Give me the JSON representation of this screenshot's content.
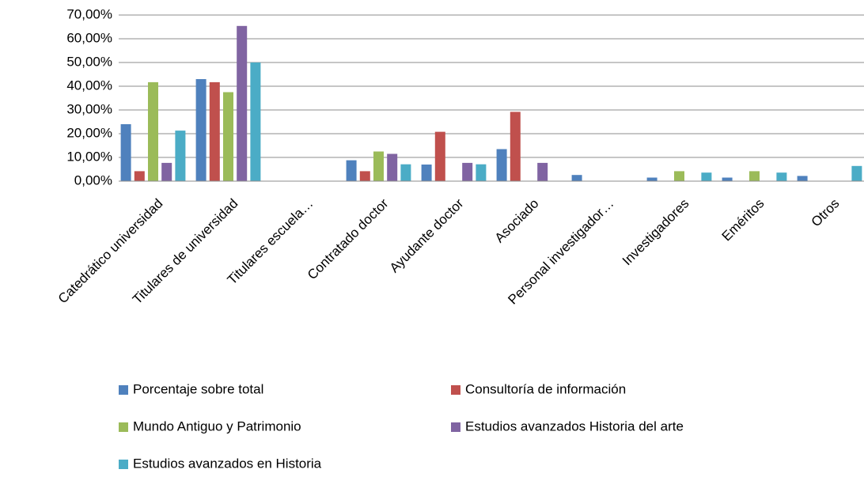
{
  "chart_data": {
    "type": "bar",
    "categories": [
      "Catedrático universidad",
      "Titulares de universidad",
      "Titulares escuela…",
      "Contratado doctor",
      "Ayudante doctor",
      "Asociado",
      "Personal investigador…",
      "Investigadores",
      "Eméritos",
      "Otros"
    ],
    "series": [
      {
        "name": "Porcentaje sobre total",
        "color": "#4f81bd",
        "values": [
          24,
          43,
          0,
          8.8,
          7,
          13.5,
          2.6,
          1.5,
          1.5,
          2.2
        ]
      },
      {
        "name": "Consultoría de información",
        "color": "#c0504d",
        "values": [
          4.2,
          41.7,
          0,
          4.2,
          20.8,
          29.2,
          0,
          0,
          0,
          0
        ]
      },
      {
        "name": "Mundo Antiguo y Patrimonio",
        "color": "#9bbb59",
        "values": [
          41.7,
          37.5,
          0,
          12.5,
          0,
          0,
          0,
          4.2,
          4.2,
          0
        ]
      },
      {
        "name": "Estudios avanzados Historia del arte",
        "color": "#8064a2",
        "values": [
          7.7,
          65.4,
          0,
          11.5,
          7.7,
          7.7,
          0,
          0,
          0,
          0
        ]
      },
      {
        "name": "Estudios avanzados en Historia",
        "color": "#4bacc6",
        "values": [
          21.3,
          50,
          0,
          7.1,
          7.1,
          0,
          0,
          3.6,
          3.6,
          6.4
        ]
      }
    ],
    "ylim": [
      0,
      70
    ],
    "yticks": [
      {
        "value": 0,
        "label": "0,00%"
      },
      {
        "value": 10,
        "label": "10,00%"
      },
      {
        "value": 20,
        "label": "20,00%"
      },
      {
        "value": 30,
        "label": "30,00%"
      },
      {
        "value": 40,
        "label": "40,00%"
      },
      {
        "value": 50,
        "label": "50,00%"
      },
      {
        "value": 60,
        "label": "60,00%"
      },
      {
        "value": 70,
        "label": "70,00%"
      }
    ],
    "grid": true,
    "legend": "bottom"
  }
}
